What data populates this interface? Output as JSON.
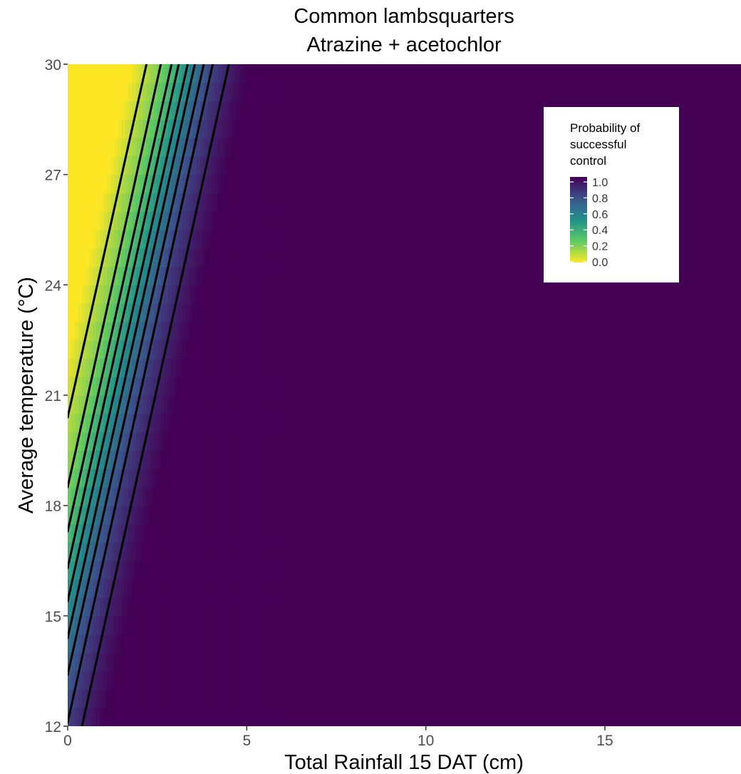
{
  "chart_data": {
    "type": "heatmap",
    "title": "Common lambsquarters",
    "subtitle": "Atrazine + acetochlor",
    "xlabel": "Total Rainfall 15 DAT (cm)",
    "ylabel": "Average temperature (°C)",
    "xlim": [
      0,
      18.8
    ],
    "ylim": [
      12,
      30
    ],
    "x_ticks": [
      0,
      5,
      10,
      15
    ],
    "y_ticks": [
      12,
      15,
      18,
      21,
      24,
      27,
      30
    ],
    "grid": false,
    "colorscale": "viridis (reversed)",
    "colors": [
      "#fde725",
      "#5ec962",
      "#21918c",
      "#3b528b",
      "#440154"
    ],
    "legend": {
      "title": [
        "Probability of",
        "successful",
        "control"
      ],
      "position": "top-right",
      "ticks": [
        "1.0",
        "0.8",
        "0.6",
        "0.4",
        "0.2",
        "0.0"
      ],
      "tick_values": [
        1.0,
        0.8,
        0.6,
        0.4,
        0.2,
        0.0
      ]
    },
    "contours": [
      {
        "level": 0.1,
        "from": [
          0.0,
          20.4
        ],
        "to": [
          2.2,
          30
        ]
      },
      {
        "level": 0.2,
        "from": [
          0.0,
          18.5
        ],
        "to": [
          2.6,
          30
        ]
      },
      {
        "level": 0.3,
        "from": [
          0.0,
          17.3
        ],
        "to": [
          2.9,
          30
        ]
      },
      {
        "level": 0.4,
        "from": [
          0.0,
          16.3
        ],
        "to": [
          3.1,
          30
        ]
      },
      {
        "level": 0.5,
        "from": [
          0.0,
          15.4
        ],
        "to": [
          3.35,
          30
        ]
      },
      {
        "level": 0.6,
        "from": [
          0.0,
          14.4
        ],
        "to": [
          3.55,
          30
        ]
      },
      {
        "level": 0.7,
        "from": [
          0.0,
          13.4
        ],
        "to": [
          3.8,
          30
        ]
      },
      {
        "level": 0.8,
        "from": [
          0.0,
          12.1
        ],
        "to": [
          4.05,
          30
        ]
      },
      {
        "level": 0.9,
        "from": [
          0.4,
          12.0
        ],
        "to": [
          4.5,
          30
        ]
      }
    ]
  }
}
